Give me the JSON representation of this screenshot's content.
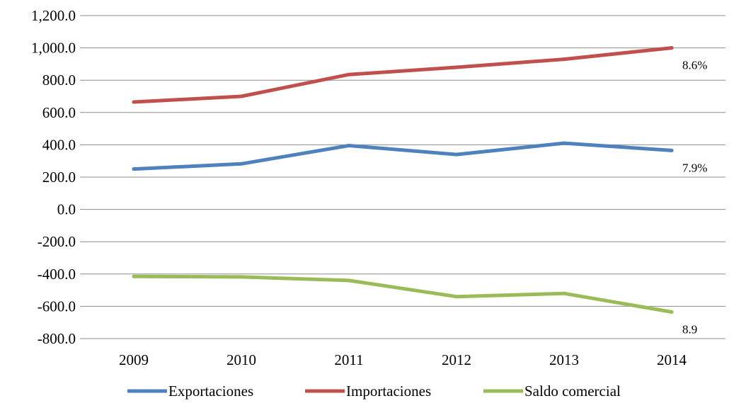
{
  "chart_data": {
    "type": "line",
    "title": "",
    "xlabel": "",
    "ylabel": "",
    "categories": [
      "2009",
      "2010",
      "2011",
      "2012",
      "2013",
      "2014"
    ],
    "ylim": [
      -800,
      1200
    ],
    "yticks": [
      -800,
      -600,
      -400,
      -200,
      0,
      200,
      400,
      600,
      800,
      1000,
      1200
    ],
    "ytick_labels": [
      "-800.0",
      "-600.0",
      "-400.0",
      "-200.0",
      "0.0",
      "200.0",
      "400.0",
      "600.0",
      "800.0",
      "1,000.0",
      "1,200.0"
    ],
    "grid": "horizontal",
    "legend_position": "bottom",
    "series": [
      {
        "name": "Exportaciones",
        "color": "#4F81BD",
        "values": [
          250,
          282,
          395,
          340,
          410,
          365
        ],
        "end_label": "7.9%"
      },
      {
        "name": "Importaciones",
        "color": "#C0504D",
        "values": [
          665,
          700,
          835,
          880,
          930,
          1000
        ],
        "end_label": "8.6%"
      },
      {
        "name": "Saldo comercial",
        "color": "#9BBB59",
        "values": [
          -415,
          -418,
          -440,
          -540,
          -520,
          -635
        ],
        "end_label": "8.9"
      }
    ]
  }
}
